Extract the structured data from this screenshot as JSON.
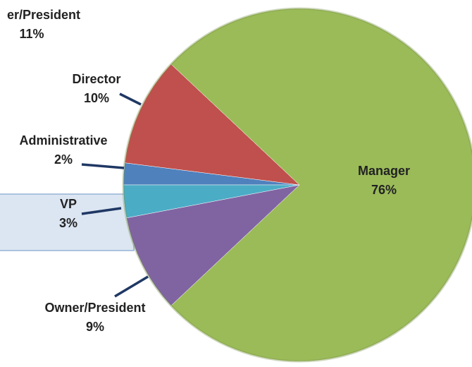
{
  "chart_data": {
    "type": "pie",
    "categories": [
      "Administrative",
      "Director",
      "Manager",
      "Owner/President",
      "VP"
    ],
    "values": [
      2,
      10,
      76,
      9,
      3
    ],
    "value_labels": [
      "2%",
      "10%",
      "76%",
      "9%",
      "3%"
    ],
    "colors": [
      "#4f81bd",
      "#c0504d",
      "#9bbb59",
      "#8064a2",
      "#4bacc6"
    ],
    "annotations": [
      "er/President",
      "11%"
    ]
  }
}
